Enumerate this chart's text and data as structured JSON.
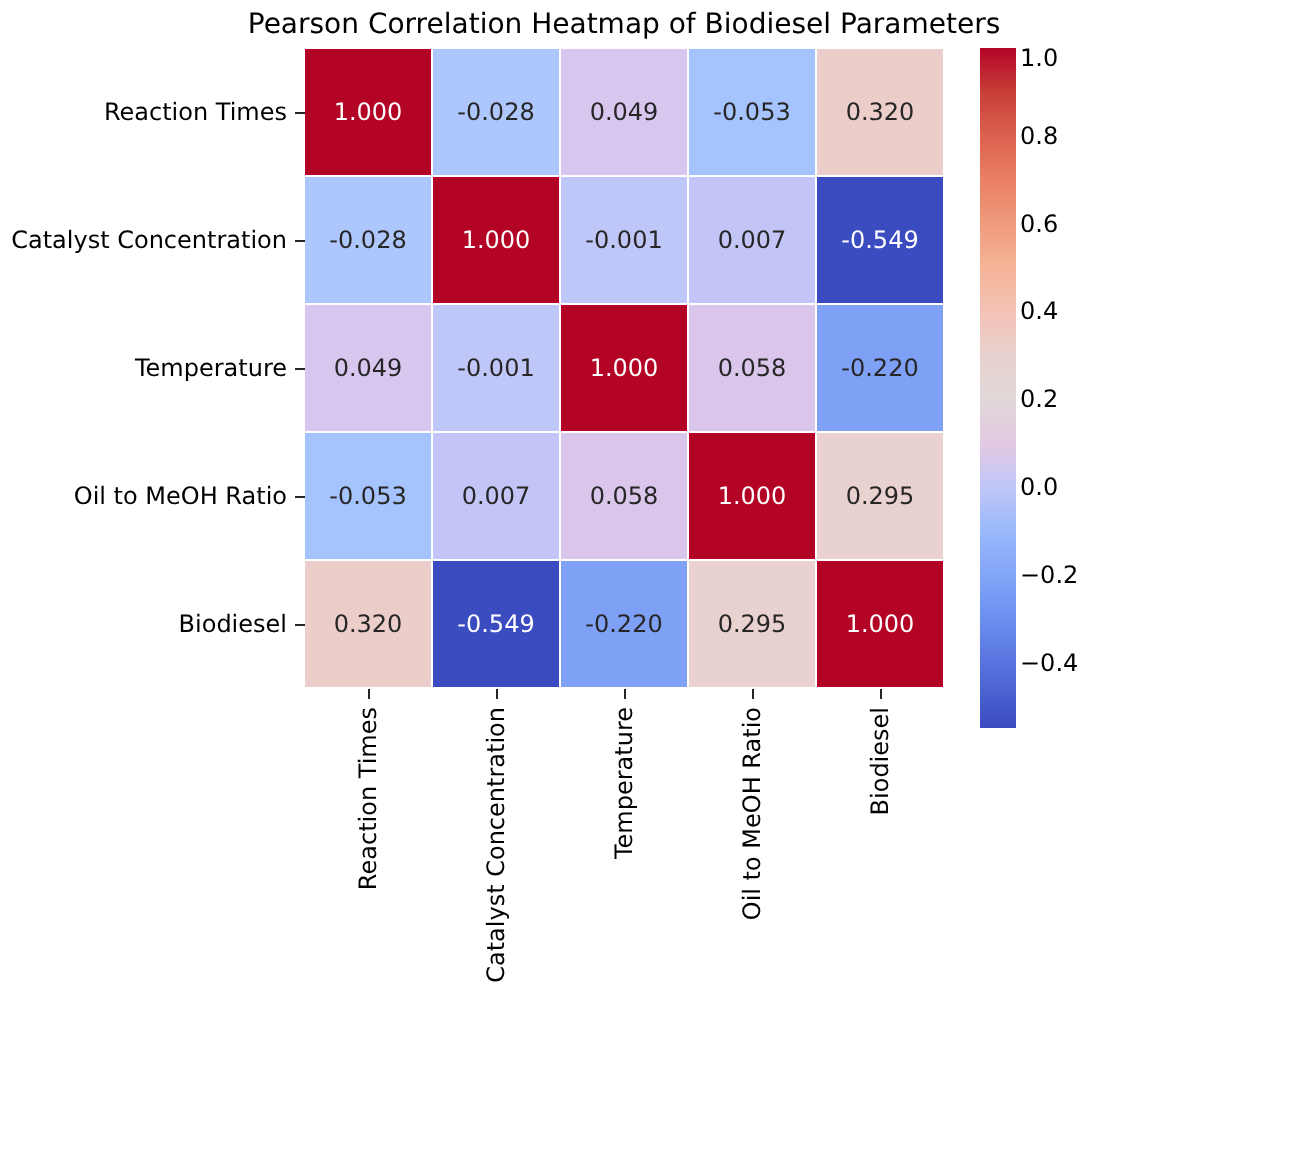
{
  "chart_data": {
    "type": "heatmap",
    "title": "Pearson Correlation Heatmap of Biodiesel Parameters",
    "categories": [
      "Reaction Times",
      "Catalyst Concentration",
      "Temperature",
      "Oil to MeOH Ratio",
      "Biodiesel"
    ],
    "y_categories": [
      "Reaction Times",
      "Catalyst Concentration",
      "Temperature",
      "Oil to MeOH Ratio",
      "Biodiesel"
    ],
    "cells": [
      [
        1.0,
        -0.028,
        0.049,
        -0.053,
        0.32
      ],
      [
        -0.028,
        1.0,
        -0.001,
        0.007,
        -0.549
      ],
      [
        0.049,
        -0.001,
        1.0,
        0.058,
        -0.22
      ],
      [
        -0.053,
        0.007,
        0.058,
        1.0,
        0.295
      ],
      [
        0.32,
        -0.549,
        -0.22,
        0.295,
        1.0
      ]
    ],
    "cell_labels": [
      [
        "1.000",
        "-0.028",
        "0.049",
        "-0.053",
        "0.320"
      ],
      [
        "-0.028",
        "1.000",
        "-0.001",
        "0.007",
        "-0.549"
      ],
      [
        "0.049",
        "-0.001",
        "1.000",
        "0.058",
        "-0.220"
      ],
      [
        "-0.053",
        "0.007",
        "0.058",
        "1.000",
        "0.295"
      ],
      [
        "0.320",
        "-0.549",
        "-0.220",
        "0.295",
        "1.000"
      ]
    ],
    "clim": [
      -0.549,
      1.0
    ],
    "cticks": [
      -0.4,
      -0.2,
      {
        "value": 0,
        "label": "0.0"
      },
      0.2,
      0.4,
      0.6,
      0.8,
      {
        "value": 1,
        "label": "1.0"
      }
    ]
  }
}
